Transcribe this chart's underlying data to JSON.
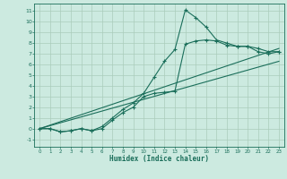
{
  "xlabel": "Humidex (Indice chaleur)",
  "bg_color": "#cceae0",
  "grid_color": "#aaccbb",
  "line_color": "#1a6e5a",
  "xlim": [
    -0.5,
    23.5
  ],
  "ylim": [
    -1.7,
    11.7
  ],
  "xticks": [
    0,
    1,
    2,
    3,
    4,
    5,
    6,
    7,
    8,
    9,
    10,
    11,
    12,
    13,
    14,
    15,
    16,
    17,
    18,
    19,
    20,
    21,
    22,
    23
  ],
  "yticks": [
    -1,
    0,
    1,
    2,
    3,
    4,
    5,
    6,
    7,
    8,
    9,
    10,
    11
  ],
  "line1_x": [
    0,
    1,
    2,
    3,
    4,
    5,
    6,
    7,
    8,
    9,
    10,
    11,
    12,
    13,
    14,
    15,
    16,
    17,
    18,
    19,
    20,
    21,
    22,
    23
  ],
  "line1_y": [
    0,
    0,
    -0.3,
    -0.2,
    0,
    -0.2,
    0.2,
    1.0,
    1.8,
    2.4,
    3.3,
    4.8,
    6.3,
    7.4,
    11.1,
    10.4,
    9.5,
    8.3,
    8.0,
    7.7,
    7.7,
    7.5,
    7.2,
    7.2
  ],
  "line2_x": [
    0,
    1,
    2,
    3,
    4,
    5,
    6,
    7,
    8,
    9,
    10,
    11,
    12,
    13,
    14,
    15,
    16,
    17,
    18,
    19,
    20,
    21,
    22,
    23
  ],
  "line2_y": [
    0,
    0,
    -0.3,
    -0.2,
    0,
    -0.2,
    0.0,
    0.8,
    1.5,
    2.0,
    3.0,
    3.3,
    3.4,
    3.5,
    7.9,
    8.2,
    8.3,
    8.2,
    7.8,
    7.7,
    7.7,
    7.2,
    7.0,
    7.2
  ],
  "line3_x": [
    0,
    23
  ],
  "line3_y": [
    0,
    7.5
  ],
  "line4_x": [
    0,
    23
  ],
  "line4_y": [
    0,
    6.3
  ]
}
